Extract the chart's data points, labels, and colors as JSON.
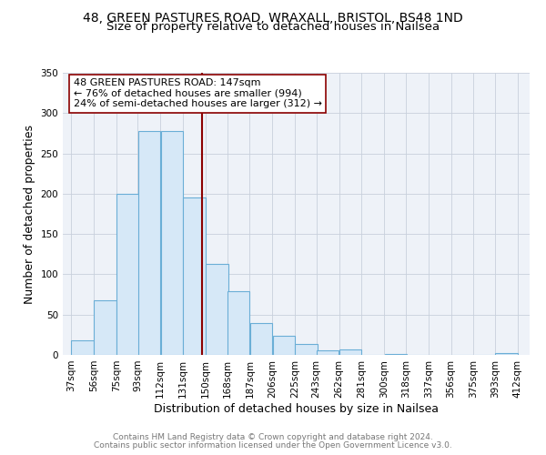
{
  "title": "48, GREEN PASTURES ROAD, WRAXALL, BRISTOL, BS48 1ND",
  "subtitle": "Size of property relative to detached houses in Nailsea",
  "xlabel": "Distribution of detached houses by size in Nailsea",
  "ylabel": "Number of detached properties",
  "bar_left_edges": [
    37,
    56,
    75,
    93,
    112,
    131,
    150,
    168,
    187,
    206,
    225,
    243,
    262,
    281,
    300,
    318,
    337,
    356,
    375,
    393
  ],
  "bar_heights": [
    18,
    68,
    200,
    278,
    278,
    195,
    113,
    79,
    39,
    24,
    14,
    6,
    7,
    0,
    1,
    0,
    0,
    0,
    0,
    2
  ],
  "bin_width": 19,
  "bar_facecolor": "#d6e8f7",
  "bar_edgecolor": "#6aaed6",
  "vline_x": 147,
  "vline_color": "#8b0000",
  "annotation_line1": "48 GREEN PASTURES ROAD: 147sqm",
  "annotation_line2": "← 76% of detached houses are smaller (994)",
  "annotation_line3": "24% of semi-detached houses are larger (312) →",
  "annotation_box_facecolor": "white",
  "annotation_box_edgecolor": "#8b0000",
  "xtick_labels": [
    "37sqm",
    "56sqm",
    "75sqm",
    "93sqm",
    "112sqm",
    "131sqm",
    "150sqm",
    "168sqm",
    "187sqm",
    "206sqm",
    "225sqm",
    "243sqm",
    "262sqm",
    "281sqm",
    "300sqm",
    "318sqm",
    "337sqm",
    "356sqm",
    "375sqm",
    "393sqm",
    "412sqm"
  ],
  "xtick_positions": [
    37,
    56,
    75,
    93,
    112,
    131,
    150,
    168,
    187,
    206,
    225,
    243,
    262,
    281,
    300,
    318,
    337,
    356,
    375,
    393,
    412
  ],
  "ylim": [
    0,
    350
  ],
  "xlim": [
    30,
    422
  ],
  "yticks": [
    0,
    50,
    100,
    150,
    200,
    250,
    300,
    350
  ],
  "grid_color": "#c8d0dc",
  "background_color": "#eef2f8",
  "footer1": "Contains HM Land Registry data © Crown copyright and database right 2024.",
  "footer2": "Contains public sector information licensed under the Open Government Licence v3.0.",
  "title_fontsize": 10,
  "subtitle_fontsize": 9.5,
  "xlabel_fontsize": 9,
  "ylabel_fontsize": 9,
  "tick_fontsize": 7.5,
  "annot_fontsize": 8,
  "footer_fontsize": 6.5
}
